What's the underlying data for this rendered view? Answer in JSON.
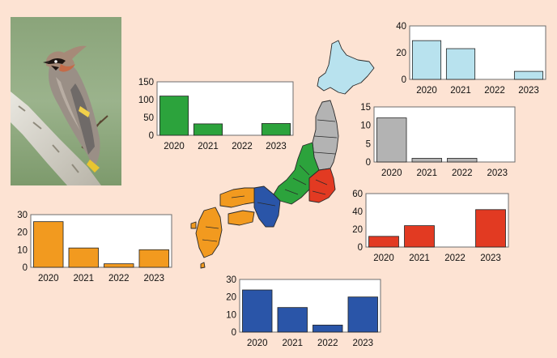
{
  "chart_data": [
    {
      "id": "hokkaido",
      "type": "bar",
      "categories": [
        "2020",
        "2021",
        "2022",
        "2023"
      ],
      "values": [
        29,
        23,
        0,
        6
      ],
      "ylim": [
        0,
        40
      ],
      "yticks": [
        0,
        20,
        40
      ],
      "color": "#b8e2ee",
      "legend": false,
      "grid": false
    },
    {
      "id": "tohoku",
      "type": "bar",
      "categories": [
        "2020",
        "2021",
        "2022",
        "2023"
      ],
      "values": [
        12,
        1,
        1,
        0
      ],
      "ylim": [
        0,
        15
      ],
      "yticks": [
        0,
        5,
        10,
        15
      ],
      "color": "#b3b3b3",
      "legend": false,
      "grid": false
    },
    {
      "id": "chubu",
      "type": "bar",
      "categories": [
        "2020",
        "2021",
        "2022",
        "2023"
      ],
      "values": [
        110,
        32,
        0,
        33
      ],
      "ylim": [
        0,
        150
      ],
      "yticks": [
        0,
        50,
        100,
        150
      ],
      "color": "#2ca33c",
      "legend": false,
      "grid": false
    },
    {
      "id": "kanto",
      "type": "bar",
      "categories": [
        "2020",
        "2021",
        "2022",
        "2023"
      ],
      "values": [
        12,
        24,
        0,
        42
      ],
      "ylim": [
        0,
        60
      ],
      "yticks": [
        0,
        20,
        40,
        60
      ],
      "color": "#e23a22",
      "legend": false,
      "grid": false
    },
    {
      "id": "west",
      "type": "bar",
      "categories": [
        "2020",
        "2021",
        "2022",
        "2023"
      ],
      "values": [
        26,
        11,
        2,
        10
      ],
      "ylim": [
        0,
        30
      ],
      "yticks": [
        0,
        10,
        20,
        30
      ],
      "color": "#f29a1f",
      "legend": false,
      "grid": false
    },
    {
      "id": "kinki",
      "type": "bar",
      "categories": [
        "2020",
        "2021",
        "2022",
        "2023"
      ],
      "values": [
        24,
        14,
        4,
        20
      ],
      "ylim": [
        0,
        30
      ],
      "yticks": [
        0,
        10,
        20,
        30
      ],
      "color": "#2a55a8",
      "legend": false,
      "grid": false
    }
  ],
  "illustrations": {
    "photo_icon": "waxwing-bird-photo",
    "map_icon": "japan-regions-map",
    "map_colors": {
      "hokkaido": "#b8e2ee",
      "tohoku": "#b3b3b3",
      "chubu": "#2ca33c",
      "kanto": "#e23a22",
      "kinki": "#2a55a8",
      "west": "#f29a1f"
    }
  }
}
